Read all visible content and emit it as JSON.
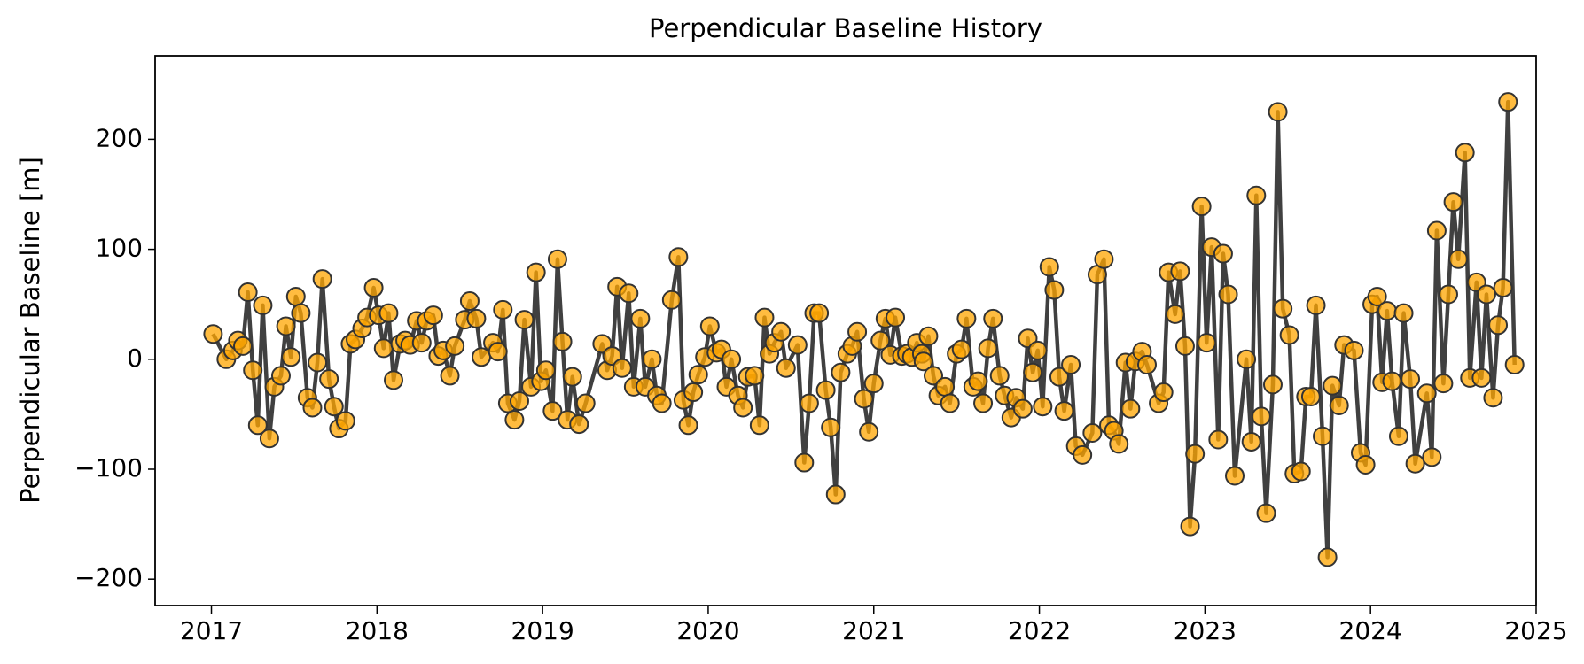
{
  "chart_data": {
    "type": "line",
    "title": "Perpendicular Baseline History",
    "ylabel": "Perpendicular Baseline [m]",
    "color": "#ffa500",
    "line_color": "#404040",
    "xlim": [
      2016.66,
      2025.0
    ],
    "ylim": [
      -224,
      276
    ],
    "xticks": [
      2017,
      2018,
      2019,
      2020,
      2021,
      2022,
      2023,
      2024,
      2025
    ],
    "yticks": [
      {
        "value": -200,
        "label": "−200"
      },
      {
        "value": -100,
        "label": "−100"
      },
      0,
      100,
      200
    ],
    "x": [
      2017.01,
      2017.09,
      2017.13,
      2017.16,
      2017.19,
      2017.22,
      2017.25,
      2017.28,
      2017.31,
      2017.35,
      2017.38,
      2017.42,
      2017.45,
      2017.48,
      2017.51,
      2017.54,
      2017.58,
      2017.61,
      2017.64,
      2017.67,
      2017.71,
      2017.74,
      2017.77,
      2017.81,
      2017.84,
      2017.87,
      2017.91,
      2017.94,
      2017.98,
      2018.01,
      2018.04,
      2018.07,
      2018.1,
      2018.14,
      2018.17,
      2018.2,
      2018.24,
      2018.27,
      2018.3,
      2018.34,
      2018.37,
      2018.4,
      2018.44,
      2018.47,
      2018.53,
      2018.56,
      2018.6,
      2018.63,
      2018.7,
      2018.73,
      2018.76,
      2018.79,
      2018.83,
      2018.86,
      2018.89,
      2018.93,
      2018.96,
      2018.99,
      2019.02,
      2019.06,
      2019.09,
      2019.12,
      2019.15,
      2019.18,
      2019.22,
      2019.26,
      2019.36,
      2019.39,
      2019.42,
      2019.45,
      2019.48,
      2019.52,
      2019.55,
      2019.59,
      2019.62,
      2019.66,
      2019.69,
      2019.72,
      2019.78,
      2019.82,
      2019.85,
      2019.88,
      2019.91,
      2019.94,
      2019.98,
      2020.01,
      2020.05,
      2020.08,
      2020.11,
      2020.14,
      2020.18,
      2020.21,
      2020.24,
      2020.28,
      2020.31,
      2020.34,
      2020.37,
      2020.4,
      2020.44,
      2020.47,
      2020.54,
      2020.58,
      2020.61,
      2020.64,
      2020.67,
      2020.71,
      2020.74,
      2020.77,
      2020.8,
      2020.84,
      2020.87,
      2020.9,
      2020.94,
      2020.97,
      2021.0,
      2021.04,
      2021.07,
      2021.1,
      2021.13,
      2021.17,
      2021.2,
      2021.23,
      2021.26,
      2021.29,
      2021.3,
      2021.33,
      2021.36,
      2021.39,
      2021.43,
      2021.46,
      2021.5,
      2021.53,
      2021.56,
      2021.6,
      2021.63,
      2021.66,
      2021.69,
      2021.72,
      2021.76,
      2021.79,
      2021.83,
      2021.86,
      2021.9,
      2021.93,
      2021.96,
      2021.99,
      2022.02,
      2022.06,
      2022.09,
      2022.12,
      2022.15,
      2022.19,
      2022.22,
      2022.26,
      2022.32,
      2022.35,
      2022.39,
      2022.42,
      2022.45,
      2022.48,
      2022.52,
      2022.55,
      2022.58,
      2022.62,
      2022.65,
      2022.72,
      2022.75,
      2022.78,
      2022.82,
      2022.85,
      2022.88,
      2022.91,
      2022.94,
      2022.98,
      2023.01,
      2023.04,
      2023.08,
      2023.11,
      2023.14,
      2023.18,
      2023.25,
      2023.28,
      2023.31,
      2023.34,
      2023.37,
      2023.41,
      2023.44,
      2023.47,
      2023.51,
      2023.54,
      2023.58,
      2023.61,
      2023.64,
      2023.67,
      2023.71,
      2023.74,
      2023.77,
      2023.81,
      2023.84,
      2023.9,
      2023.94,
      2023.97,
      2024.01,
      2024.04,
      2024.07,
      2024.1,
      2024.13,
      2024.17,
      2024.2,
      2024.24,
      2024.27,
      2024.34,
      2024.37,
      2024.4,
      2024.44,
      2024.47,
      2024.5,
      2024.53,
      2024.57,
      2024.6,
      2024.64,
      2024.67,
      2024.7,
      2024.74,
      2024.77,
      2024.8,
      2024.83,
      2024.87
    ],
    "values": [
      23,
      0,
      8,
      17,
      12,
      61,
      -10,
      -60,
      49,
      -72,
      -25,
      -15,
      30,
      2,
      57,
      42,
      -35,
      -44,
      -3,
      73,
      -18,
      -43,
      -63,
      -56,
      14,
      18,
      28,
      38,
      65,
      40,
      10,
      42,
      -19,
      14,
      17,
      13,
      35,
      15,
      35,
      40,
      3,
      8,
      -15,
      12,
      36,
      53,
      37,
      2,
      15,
      7,
      45,
      -40,
      -55,
      -38,
      36,
      -25,
      79,
      -20,
      -10,
      -47,
      91,
      16,
      -55,
      -16,
      -59,
      -40,
      14,
      -10,
      3,
      66,
      -8,
      60,
      -25,
      37,
      -25,
      0,
      -33,
      -40,
      54,
      93,
      -37,
      -60,
      -30,
      -14,
      2,
      30,
      6,
      9,
      -25,
      0,
      -33,
      -44,
      -16,
      -15,
      -60,
      38,
      5,
      15,
      25,
      -8,
      13,
      -94,
      -40,
      42,
      42,
      -28,
      -62,
      -123,
      -12,
      5,
      12,
      25,
      -36,
      -66,
      -22,
      17,
      37,
      4,
      38,
      3,
      5,
      2,
      15,
      5,
      -2,
      21,
      -15,
      -33,
      -25,
      -40,
      5,
      9,
      37,
      -25,
      -20,
      -40,
      10,
      37,
      -15,
      -33,
      -53,
      -35,
      -45,
      19,
      -12,
      8,
      -43,
      84,
      63,
      -16,
      -47,
      -5,
      -79,
      -87,
      -67,
      77,
      91,
      -60,
      -65,
      -77,
      -3,
      -45,
      -2,
      7,
      -5,
      -40,
      -30,
      79,
      41,
      80,
      12,
      -152,
      -86,
      139,
      15,
      102,
      -73,
      96,
      59,
      -106,
      0,
      -75,
      149,
      -52,
      -140,
      -23,
      225,
      46,
      22,
      -104,
      -102,
      -34,
      -34,
      49,
      -70,
      -180,
      -24,
      -42,
      13,
      8,
      -85,
      -96,
      50,
      57,
      -21,
      44,
      -20,
      -70,
      42,
      -18,
      -95,
      -31,
      -89,
      117,
      -22,
      59,
      143,
      91,
      188,
      -17,
      70,
      -17,
      59,
      -35,
      31,
      65,
      234,
      -5
    ]
  }
}
